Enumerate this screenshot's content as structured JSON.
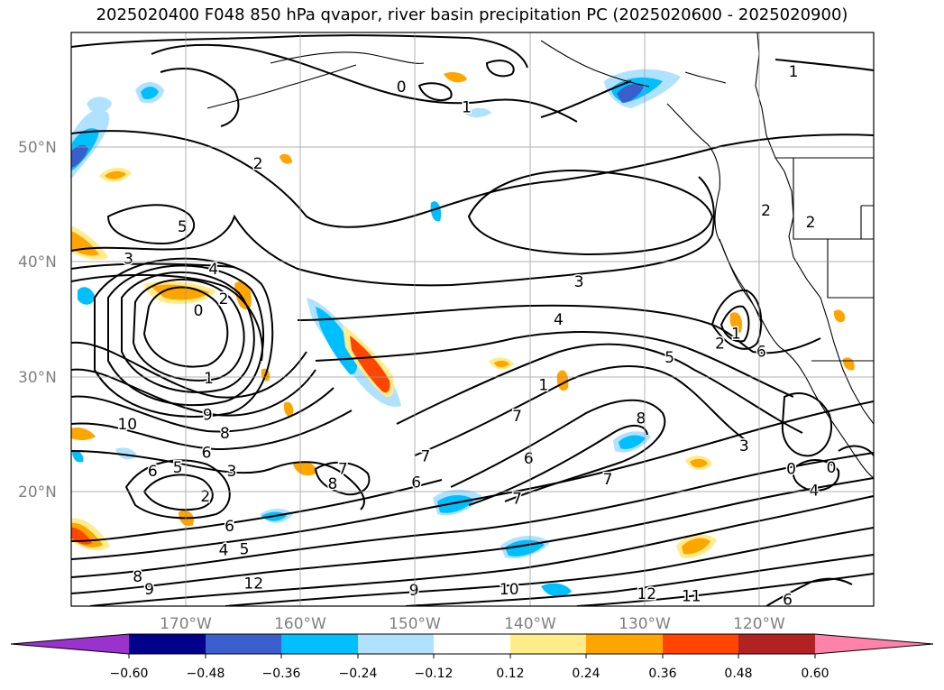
{
  "title": "2025020400 F048 850 hPa qvapor, river basin precipitation PC (2025020600 - 2025020900)",
  "lat_labels": [
    "50°N",
    "40°N",
    "30°N",
    "20°N"
  ],
  "lon_labels": [
    "170°W",
    "160°W",
    "150°W",
    "140°W",
    "130°W",
    "120°W"
  ],
  "colorbar": {
    "ticks": [
      "−0.60",
      "−0.48",
      "−0.36",
      "−0.24",
      "−0.12",
      "0.12",
      "0.24",
      "0.36",
      "0.48",
      "0.60"
    ],
    "colors": [
      "#9a32cd",
      "#00008b",
      "#3a5fcd",
      "#00bfff",
      "#b0e2ff",
      "#ffffff",
      "#ffec8b",
      "#ffa500",
      "#ff4500",
      "#b22222",
      "#ff82ab"
    ]
  },
  "contour_labels": [
    {
      "text": "1",
      "lon": -117,
      "lat": 56.6
    },
    {
      "text": "0",
      "lon": -151.2,
      "lat": 55.3
    },
    {
      "text": "1",
      "lon": -145.5,
      "lat": 53.5
    },
    {
      "text": "2",
      "lon": -163.7,
      "lat": 48.6
    },
    {
      "text": "5",
      "lon": -170.3,
      "lat": 43.1
    },
    {
      "text": "3",
      "lon": -175,
      "lat": 40.3
    },
    {
      "text": "4",
      "lon": -167.6,
      "lat": 39.4
    },
    {
      "text": "2",
      "lon": -166.7,
      "lat": 36.8
    },
    {
      "text": "0",
      "lon": -168.9,
      "lat": 35.8
    },
    {
      "text": "3",
      "lon": -135.7,
      "lat": 38.3
    },
    {
      "text": "4",
      "lon": -137.5,
      "lat": 35
    },
    {
      "text": "5",
      "lon": -127.8,
      "lat": 31.7
    },
    {
      "text": "2",
      "lon": -123.4,
      "lat": 32.9
    },
    {
      "text": "1",
      "lon": -122,
      "lat": 33.8
    },
    {
      "text": "6",
      "lon": -119.8,
      "lat": 32.2
    },
    {
      "text": "1",
      "lon": -168,
      "lat": 29.9
    },
    {
      "text": "9",
      "lon": -168.1,
      "lat": 26.7
    },
    {
      "text": "10",
      "lon": -175.1,
      "lat": 25.9
    },
    {
      "text": "8",
      "lon": -166.6,
      "lat": 25.1
    },
    {
      "text": "6",
      "lon": -168.2,
      "lat": 23.4
    },
    {
      "text": "5",
      "lon": -170.7,
      "lat": 22.1
    },
    {
      "text": "3",
      "lon": -166,
      "lat": 21.8
    },
    {
      "text": "2",
      "lon": -168.3,
      "lat": 19.6
    },
    {
      "text": "7",
      "lon": -156.3,
      "lat": 22
    },
    {
      "text": "8",
      "lon": -157.2,
      "lat": 20.7
    },
    {
      "text": "7",
      "lon": -149.1,
      "lat": 23.1
    },
    {
      "text": "6",
      "lon": -149.9,
      "lat": 20.8
    },
    {
      "text": "7",
      "lon": -141.1,
      "lat": 26.6
    },
    {
      "text": "6",
      "lon": -140.1,
      "lat": 22.9
    },
    {
      "text": "7",
      "lon": -141.1,
      "lat": 19.4
    },
    {
      "text": "7",
      "lon": -133.2,
      "lat": 21.1
    },
    {
      "text": "8",
      "lon": -130.3,
      "lat": 26.4
    },
    {
      "text": "3",
      "lon": -121.3,
      "lat": 24
    },
    {
      "text": "0",
      "lon": -117.2,
      "lat": 22
    },
    {
      "text": "0",
      "lon": -113.7,
      "lat": 22.1
    },
    {
      "text": "4",
      "lon": -115.2,
      "lat": 20.1
    },
    {
      "text": "6",
      "lon": -172.9,
      "lat": 21.8
    },
    {
      "text": "6",
      "lon": -166.2,
      "lat": 17
    },
    {
      "text": "4",
      "lon": -166.7,
      "lat": 14.9
    },
    {
      "text": "5",
      "lon": -164.9,
      "lat": 15
    },
    {
      "text": "12",
      "lon": -164.1,
      "lat": 12
    },
    {
      "text": "8",
      "lon": -174.2,
      "lat": 12.6
    },
    {
      "text": "9",
      "lon": -173.2,
      "lat": 11.5
    },
    {
      "text": "9",
      "lon": -150.1,
      "lat": 11.4
    },
    {
      "text": "10",
      "lon": -141.8,
      "lat": 11.5
    },
    {
      "text": "12",
      "lon": -129.8,
      "lat": 11.1
    },
    {
      "text": "11",
      "lon": -125.9,
      "lat": 10.9
    },
    {
      "text": "6",
      "lon": -117.5,
      "lat": 10.6
    },
    {
      "text": "1",
      "lon": -138.8,
      "lat": 29.3
    },
    {
      "text": "2",
      "lon": -119.4,
      "lat": 44.5
    },
    {
      "text": "2",
      "lon": -115.5,
      "lat": 43.5
    }
  ]
}
